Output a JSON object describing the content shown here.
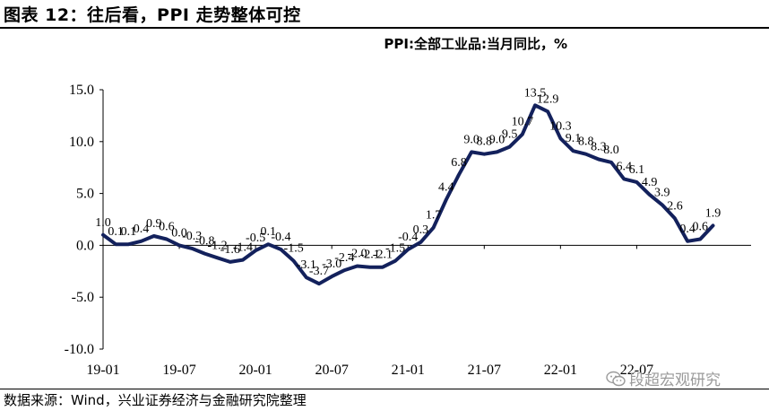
{
  "figure_title": "图表 12：往后看，PPI 走势整体可控",
  "source_note": "数据来源：Wind，兴业证券经济与金融研究院整理",
  "watermark": "段超宏观研究",
  "colors": {
    "line": "#13215c",
    "axis": "#000000",
    "watermark": "#9a9a9a"
  },
  "chart_data": {
    "type": "line",
    "title": "PPI:全部工业品:当月同比，%",
    "xlabel": "",
    "ylabel": "",
    "ylim": [
      -10,
      15
    ],
    "yticks": [
      -10,
      -5,
      0,
      5,
      10,
      15
    ],
    "ytick_labels": [
      "-10.0",
      "-5.0",
      "0.0",
      "5.0",
      "10.0",
      "15.0"
    ],
    "xtick_labels": [
      "19-01",
      "19-07",
      "20-01",
      "20-07",
      "21-01",
      "21-07",
      "22-01",
      "22-07"
    ],
    "xtick_index": [
      0,
      6,
      12,
      18,
      24,
      30,
      36,
      42
    ],
    "series": [
      {
        "name": "PPI:全部工业品:当月同比",
        "x": [
          "19-01",
          "19-02",
          "19-03",
          "19-04",
          "19-05",
          "19-06",
          "19-07",
          "19-08",
          "19-09",
          "19-10",
          "19-11",
          "19-12",
          "20-01",
          "20-02",
          "20-03",
          "20-04",
          "20-05",
          "20-06",
          "20-07",
          "20-08",
          "20-09",
          "20-10",
          "20-11",
          "20-12",
          "21-01",
          "21-02",
          "21-03",
          "21-04",
          "21-05",
          "21-06",
          "21-07",
          "21-08",
          "21-09",
          "21-10",
          "21-11",
          "21-12",
          "22-01",
          "22-02",
          "22-03",
          "22-04",
          "22-05",
          "22-06",
          "22-07",
          "22-08",
          "22-09",
          "22-10",
          "22-11",
          "22-12",
          "23-01",
          "23-02",
          "23-03",
          "23-04"
        ],
        "values": [
          1.0,
          0.1,
          0.1,
          0.4,
          0.9,
          0.6,
          0.0,
          -0.3,
          -0.8,
          -1.2,
          -1.6,
          -1.4,
          -0.5,
          0.1,
          -0.4,
          -1.5,
          -3.1,
          -3.7,
          -3.0,
          -2.4,
          -2.0,
          -2.1,
          -2.1,
          -1.5,
          -0.4,
          0.3,
          1.7,
          4.4,
          6.8,
          9.0,
          8.8,
          9.0,
          9.5,
          10.7,
          13.5,
          12.9,
          10.3,
          9.1,
          8.8,
          8.3,
          8.0,
          6.4,
          6.1,
          4.9,
          3.9,
          2.6,
          0.4,
          0.6,
          1.9,
          null,
          null,
          null
        ],
        "labels": [
          "1.0",
          "0.1",
          "0.1",
          "0.4",
          "0.9",
          "0.6",
          "0.0",
          "-0.3",
          "-0.8",
          "-1.2",
          "-1.6",
          "-1.4",
          "-0.5",
          "0.1",
          "-0.4",
          "-1.5",
          "-3.1",
          "-3.7",
          "-3.0",
          "-2.4",
          "-2.0",
          "-2.1",
          "-2.1",
          "-1.5",
          "-0.4",
          "0.3",
          "1.7",
          "4.4",
          "6.8",
          "9.0",
          "8.8",
          "9.0",
          "9.5",
          "10.7",
          "13.5",
          "12.9",
          "10.3",
          "9.1",
          "8.8",
          "8.3",
          "8.0",
          "6.4",
          "6.1",
          "4.9",
          "3.9",
          "2.6",
          "0.4",
          "0.6",
          "1.9"
        ]
      }
    ],
    "grid": false,
    "legend": "none"
  }
}
